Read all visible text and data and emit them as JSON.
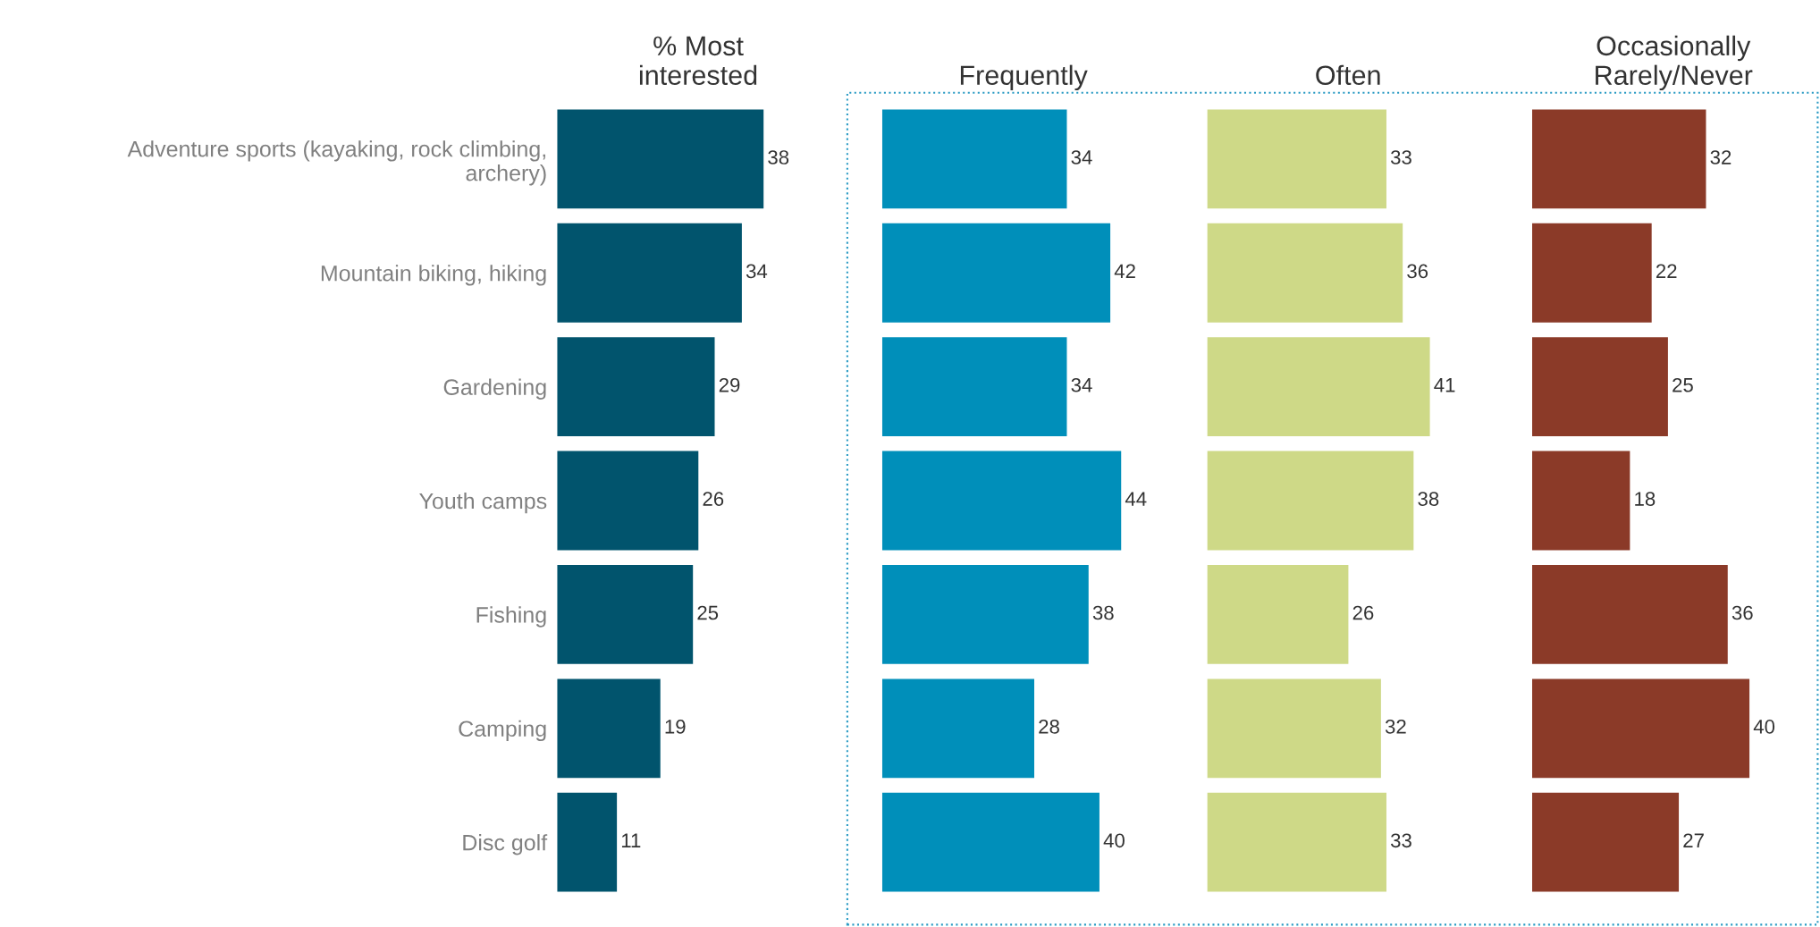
{
  "chart_data": [
    {
      "type": "bar",
      "orientation": "horizontal",
      "title": "% Most\ninterested",
      "categories": [
        "Adventure sports (kayaking, rock climbing,\narchery)",
        "Mountain biking, hiking",
        "Gardening",
        "Youth camps",
        "Fishing",
        "Camping",
        "Disc golf"
      ],
      "values": [
        38,
        34,
        29,
        26,
        25,
        19,
        11
      ],
      "color": "#01546d",
      "data_labels": true,
      "tick_labels": "y",
      "grid": false
    },
    {
      "type": "bar",
      "orientation": "horizontal",
      "title": "Frequently",
      "categories": [
        null,
        null,
        null,
        null,
        null,
        null,
        null
      ],
      "values": [
        34,
        42,
        34,
        44,
        38,
        28,
        40
      ],
      "color": "#008fba",
      "data_labels": true,
      "tick_labels": false,
      "grid": false
    },
    {
      "type": "bar",
      "orientation": "horizontal",
      "title": "Often",
      "categories": [
        null,
        null,
        null,
        null,
        null,
        null,
        null
      ],
      "values": [
        33,
        36,
        41,
        38,
        26,
        32,
        33
      ],
      "color": "#ced987",
      "data_labels": true,
      "tick_labels": false,
      "grid": false
    },
    {
      "type": "bar",
      "orientation": "horizontal",
      "title": "Occasionally\nRarely/Never",
      "categories": [
        null,
        null,
        null,
        null,
        null,
        null,
        null
      ],
      "values": [
        32,
        22,
        25,
        18,
        36,
        40,
        27
      ],
      "color": "#8b3a28",
      "data_labels": true,
      "tick_labels": false,
      "grid": false
    }
  ]
}
